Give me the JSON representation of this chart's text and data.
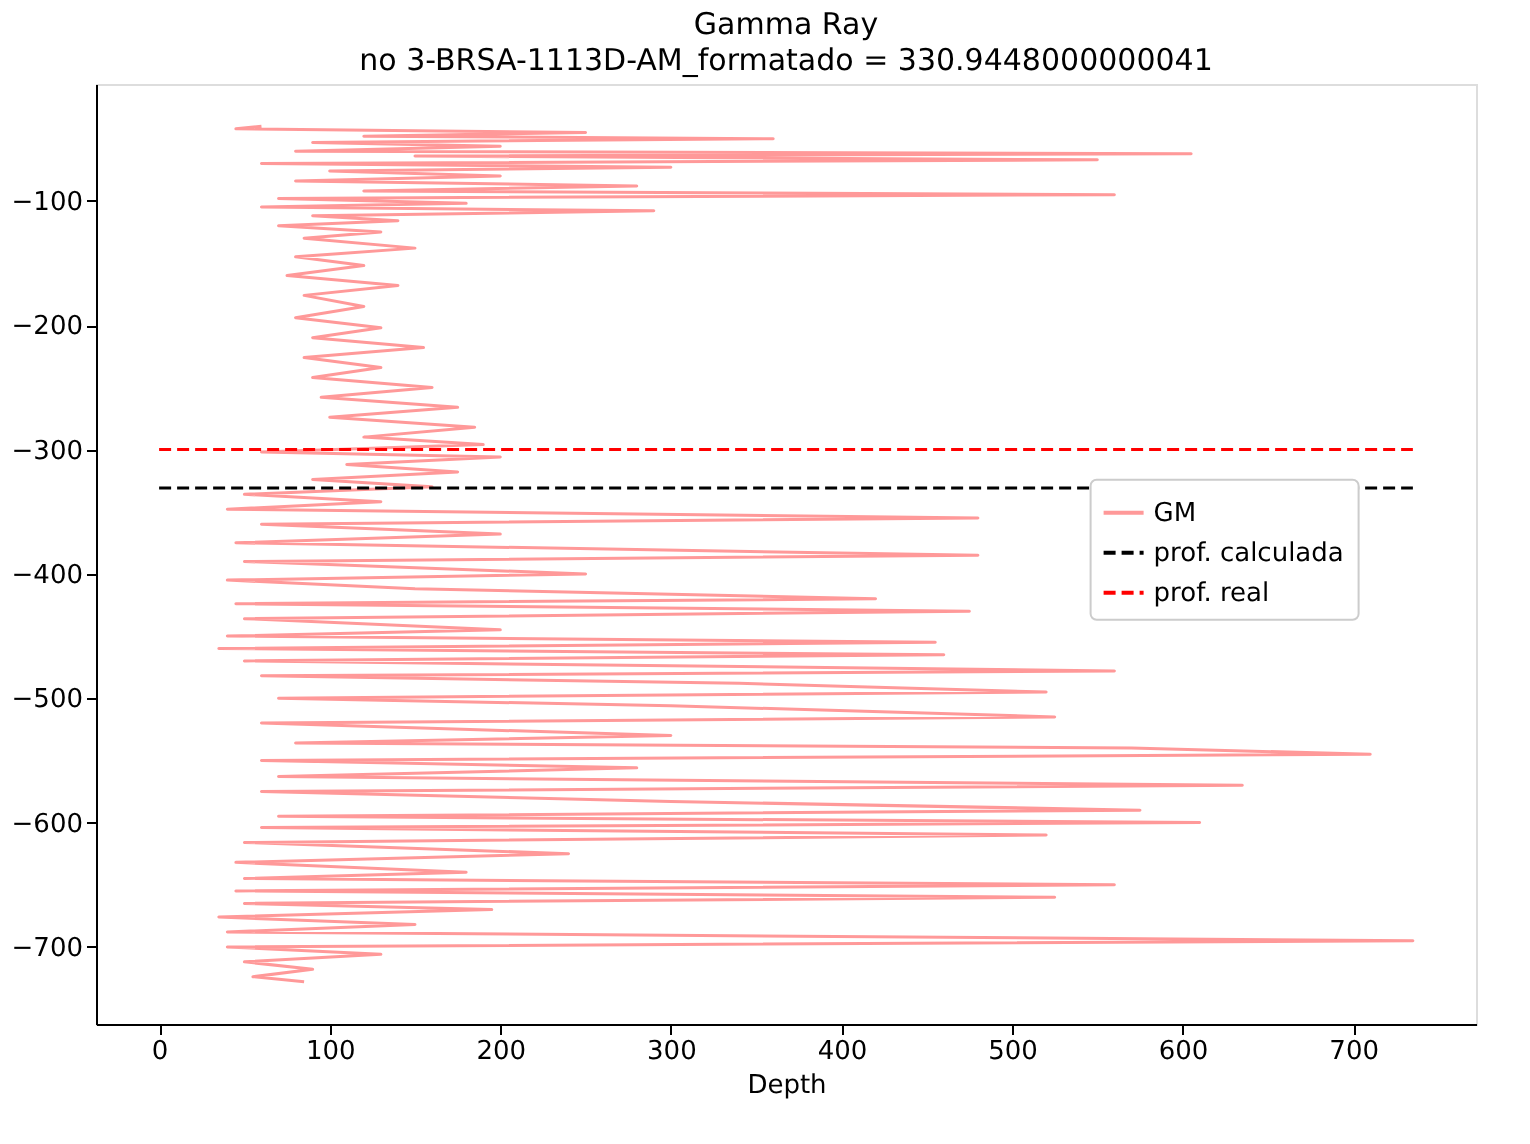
{
  "chart_data": {
    "type": "line",
    "title": "Gamma Ray",
    "subtitle": "no 3-BRSA-1113D-AM_formatado = 330.9448000000041",
    "xlabel": "Depth",
    "xlim": [
      -37,
      772
    ],
    "xticks": [
      0,
      100,
      200,
      300,
      400,
      500,
      600,
      700
    ],
    "ylim": [
      -762,
      -6
    ],
    "yticks": [
      -700,
      -600,
      -500,
      -400,
      -300,
      -200,
      -100
    ],
    "grid": false,
    "legend": "right",
    "marker": "none",
    "series": [
      {
        "name": "GM",
        "color": "#ff9999",
        "line_style": "solid",
        "x": [
          60,
          45,
          250,
          120,
          360,
          90,
          200,
          80,
          605,
          150,
          550,
          60,
          300,
          100,
          200,
          80,
          280,
          120,
          560,
          70,
          180,
          60,
          290,
          90,
          140,
          70,
          130,
          85,
          150,
          80,
          120,
          75,
          140,
          85,
          120,
          80,
          130,
          90,
          155,
          85,
          130,
          90,
          160,
          95,
          175,
          100,
          185,
          120,
          190,
          60,
          200,
          110,
          175,
          90,
          160,
          50,
          130,
          40,
          480,
          60,
          200,
          45,
          480,
          50,
          250,
          40,
          150,
          420,
          45,
          475,
          50,
          200,
          40,
          455,
          35,
          460,
          50,
          560,
          60,
          340,
          520,
          70,
          300,
          525,
          60,
          300,
          80,
          570,
          710,
          60,
          280,
          70,
          635,
          60,
          300,
          575,
          70,
          610,
          60,
          520,
          50,
          240,
          45,
          180,
          50,
          560,
          45,
          525,
          50,
          195,
          35,
          150,
          40,
          735,
          40,
          130,
          50,
          90,
          55,
          85
        ],
        "values": [
          -40,
          -42,
          -45,
          -48,
          -50,
          -53,
          -56,
          -60,
          -62,
          -64,
          -67,
          -70,
          -73,
          -76,
          -80,
          -84,
          -88,
          -92,
          -95,
          -98,
          -102,
          -105,
          -108,
          -112,
          -116,
          -120,
          -125,
          -130,
          -138,
          -145,
          -152,
          -160,
          -168,
          -176,
          -185,
          -194,
          -202,
          -210,
          -218,
          -226,
          -234,
          -242,
          -250,
          -258,
          -266,
          -274,
          -282,
          -290,
          -296,
          -302,
          -306,
          -312,
          -318,
          -324,
          -330,
          -336,
          -342,
          -348,
          -355,
          -360,
          -368,
          -375,
          -385,
          -390,
          -400,
          -405,
          -412,
          -420,
          -424,
          -430,
          -436,
          -445,
          -450,
          -455,
          -460,
          -465,
          -470,
          -478,
          -482,
          -488,
          -495,
          -500,
          -506,
          -515,
          -520,
          -530,
          -536,
          -540,
          -545,
          -550,
          -556,
          -563,
          -570,
          -575,
          -583,
          -590,
          -595,
          -600,
          -604,
          -610,
          -616,
          -625,
          -632,
          -640,
          -645,
          -650,
          -655,
          -660,
          -665,
          -670,
          -676,
          -682,
          -688,
          -695,
          -700,
          -706,
          -712,
          -718,
          -724,
          -728
        ]
      },
      {
        "name": "prof. calculada",
        "color": "#000000",
        "line_style": "dashed",
        "x": [
          0,
          735
        ],
        "values": [
          -331,
          -331
        ]
      },
      {
        "name": "prof. real",
        "color": "#ff0000",
        "line_style": "dashed",
        "x": [
          0,
          735
        ],
        "values": [
          -300,
          -300
        ]
      }
    ]
  }
}
